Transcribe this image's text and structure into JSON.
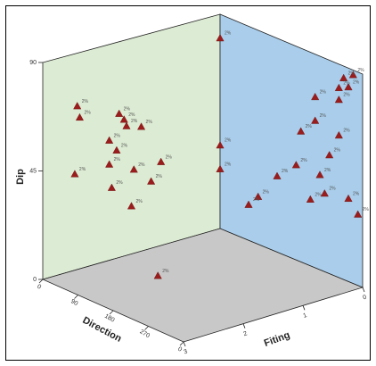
{
  "chart_data": {
    "type": "scatter",
    "projection": "3d",
    "title": "",
    "axes": {
      "y": {
        "label": "Dip",
        "ticks": [
          "0",
          "45",
          "90"
        ]
      },
      "x": {
        "label": "Direction",
        "ticks": [
          "0",
          "90",
          "180",
          "270",
          "0"
        ]
      },
      "z": {
        "label": "Fiting",
        "ticks": [
          "0",
          "1",
          "2",
          "3"
        ]
      }
    },
    "colors": {
      "left_wall": "#dcebd3",
      "right_wall": "#a9cdea",
      "floor": "#c8c8c8",
      "marker": "#9b1c1c",
      "marker_stroke": "#6b0f0f"
    },
    "marker": "triangle",
    "point_label": "2%",
    "points": [
      {
        "direction": 290,
        "dip": 68,
        "fitting": 0
      },
      {
        "direction": 285,
        "dip": 63,
        "fitting": 0
      },
      {
        "direction": 205,
        "dip": 60,
        "fitting": 0
      },
      {
        "direction": 195,
        "dip": 57,
        "fitting": 0
      },
      {
        "direction": 190,
        "dip": 54,
        "fitting": 0
      },
      {
        "direction": 160,
        "dip": 52,
        "fitting": 0
      },
      {
        "direction": 225,
        "dip": 50,
        "fitting": 0
      },
      {
        "direction": 210,
        "dip": 45,
        "fitting": 0
      },
      {
        "direction": 295,
        "dip": 40,
        "fitting": 0
      },
      {
        "direction": 225,
        "dip": 40,
        "fitting": 0
      },
      {
        "direction": 175,
        "dip": 35,
        "fitting": 0
      },
      {
        "direction": 120,
        "dip": 35,
        "fitting": 0
      },
      {
        "direction": 220,
        "dip": 30,
        "fitting": 0
      },
      {
        "direction": 140,
        "dip": 28,
        "fitting": 0
      },
      {
        "direction": 180,
        "dip": 20,
        "fitting": 0
      },
      {
        "direction": 0,
        "dip": 80,
        "fitting": 0.1
      },
      {
        "direction": 0,
        "dip": 35,
        "fitting": 0.1
      },
      {
        "direction": 0,
        "dip": 25,
        "fitting": 0.1
      },
      {
        "direction": 0,
        "dip": 88,
        "fitting": 2.8
      },
      {
        "direction": 0,
        "dip": 85,
        "fitting": 2.6
      },
      {
        "direction": 0,
        "dip": 82,
        "fitting": 2.7
      },
      {
        "direction": 0,
        "dip": 80,
        "fitting": 2.5
      },
      {
        "direction": 0,
        "dip": 75,
        "fitting": 2.5
      },
      {
        "direction": 0,
        "dip": 72,
        "fitting": 2.0
      },
      {
        "direction": 0,
        "dip": 62,
        "fitting": 2.0
      },
      {
        "direction": 0,
        "dip": 60,
        "fitting": 2.5
      },
      {
        "direction": 0,
        "dip": 55,
        "fitting": 1.7
      },
      {
        "direction": 0,
        "dip": 50,
        "fitting": 2.3
      },
      {
        "direction": 0,
        "dip": 40,
        "fitting": 2.1
      },
      {
        "direction": 0,
        "dip": 40,
        "fitting": 1.6
      },
      {
        "direction": 0,
        "dip": 35,
        "fitting": 2.7
      },
      {
        "direction": 0,
        "dip": 33,
        "fitting": 2.2
      },
      {
        "direction": 0,
        "dip": 32,
        "fitting": 1.2
      },
      {
        "direction": 0,
        "dip": 30,
        "fitting": 2.9
      },
      {
        "direction": 0,
        "dip": 28,
        "fitting": 1.9
      },
      {
        "direction": 0,
        "dip": 20,
        "fitting": 0.8
      },
      {
        "direction": 0,
        "dip": 15,
        "fitting": 0.6
      },
      {
        "direction": 150,
        "dip": 0,
        "fitting": 1.1
      }
    ]
  }
}
